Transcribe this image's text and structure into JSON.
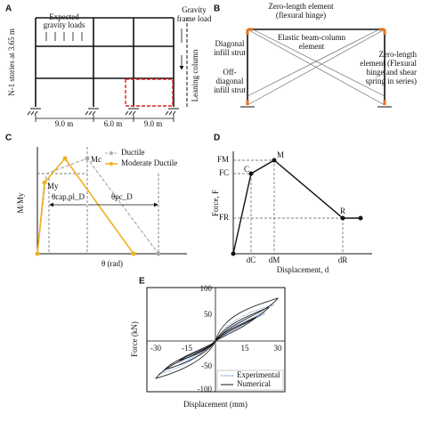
{
  "panels": {
    "a": {
      "label": "A",
      "gravity_loads": [
        "Expected",
        "gravity loads"
      ],
      "gravity_frame_load": [
        "Gravity",
        "frame load"
      ],
      "stories": "N-1 stories at 3.65 m",
      "leaning_column": "Leaning column",
      "spans": [
        "9.0 m",
        "6.0 m",
        "9.0 m"
      ]
    },
    "b": {
      "label": "B",
      "top_hinge": [
        "Zero-length element",
        "(flexural hinge)"
      ],
      "diagonal": [
        "Diagonal",
        "infill strut"
      ],
      "elastic": [
        "Elastic beam-column",
        "element"
      ],
      "off_diagonal": [
        "Off-",
        "diagonal",
        "infill strut"
      ],
      "right_hinge": [
        "Zero-length",
        "element (Flexural",
        "hinge and shear",
        "spring in series)"
      ]
    },
    "c": {
      "label": "C",
      "legend": [
        "Ductile",
        "Moderate Ductile"
      ],
      "mc": "Mc",
      "my": "My",
      "theta_cap": "θcap,pl_D",
      "theta_pc": "θpc_D",
      "y_label": "M/My",
      "x_label": "θ (rad)"
    },
    "d": {
      "label": "D",
      "forces": [
        "FM",
        "FC",
        "FR"
      ],
      "points": [
        "C",
        "M",
        "R"
      ],
      "disps": [
        "dC",
        "dM",
        "dR"
      ],
      "y_label": "Force, F",
      "x_label": "Displacement, d"
    },
    "e": {
      "label": "E",
      "yticks": [
        "100",
        "50",
        "-50",
        "-100"
      ],
      "xticks": [
        "-30",
        "-15",
        "15",
        "30"
      ],
      "legend": [
        "Experimental",
        "Numerical"
      ],
      "y_label": "Force (kN)",
      "x_label": "Displacement (mm)"
    }
  }
}
